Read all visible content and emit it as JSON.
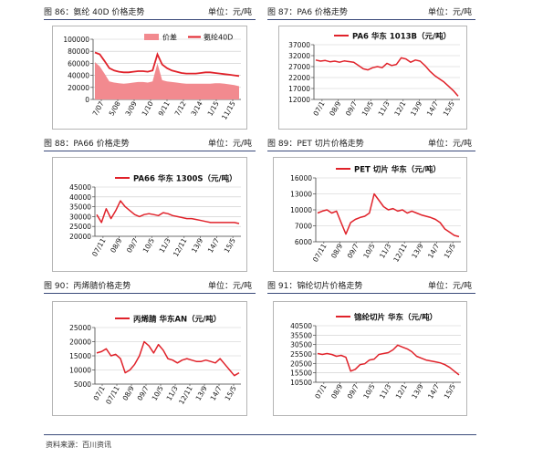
{
  "headers": [
    {
      "title": "图 86：氨纶 40D 价格走势",
      "unit": "单位：元/吨"
    },
    {
      "title": "图 87：PA6 价格走势",
      "unit": "单位：元/吨"
    },
    {
      "title": "图 88：PA66 价格走势",
      "unit": "单位：元/吨"
    },
    {
      "title": "图 89：PET 切片价格走势",
      "unit": "单位：元/吨"
    },
    {
      "title": "图 90：丙烯腈价格走势",
      "unit": "单位：元/吨"
    },
    {
      "title": "图 91：锦纶切片价格走势",
      "unit": "单位：元/吨"
    }
  ],
  "source": "资料来源：百川资讯",
  "line_color": "#e0222a",
  "area_color": "#f28a8f",
  "chart_data": [
    {
      "type": "area+line",
      "ylim": [
        0,
        100000
      ],
      "yticks": [
        "100000",
        "80000",
        "60000",
        "40000",
        "20000",
        "0"
      ],
      "xticks": [
        "7/07",
        "5/08",
        "3/09",
        "1/10",
        "9/11",
        "7/12",
        "3/14",
        "1/15",
        "11/15"
      ],
      "legend": [
        "价差",
        "氨纶40D"
      ],
      "series": [
        {
          "name": "价差",
          "kind": "area",
          "values": [
            62000,
            55000,
            43000,
            30000,
            28000,
            27000,
            26000,
            27000,
            28000,
            29000,
            29000,
            28000,
            30000,
            60000,
            32000,
            30000,
            29000,
            28000,
            27000,
            26000,
            26000,
            26000,
            26000,
            26000,
            26000,
            27000,
            27000,
            26000,
            25000,
            24000,
            22000
          ]
        },
        {
          "name": "氨纶40D",
          "kind": "line",
          "values": [
            78000,
            75000,
            64000,
            52000,
            48000,
            46000,
            45000,
            45000,
            46000,
            47000,
            47000,
            46000,
            48000,
            75000,
            58000,
            52000,
            48000,
            46000,
            44000,
            43000,
            43000,
            43000,
            44000,
            45000,
            45000,
            44000,
            43000,
            42000,
            41000,
            40000,
            39000
          ]
        }
      ]
    },
    {
      "type": "line",
      "title": "PA6 华东 1013B（元/吨）",
      "ylim": [
        12000,
        37000
      ],
      "yticks": [
        "37000",
        "32000",
        "27000",
        "22000",
        "17000",
        "12000"
      ],
      "xticks": [
        "07/1",
        "08/9",
        "09/7",
        "10/5",
        "11/3",
        "12/1",
        "13/9",
        "14/7",
        "15/5"
      ],
      "values": [
        30000,
        29500,
        29800,
        29200,
        29500,
        29000,
        29600,
        29300,
        29000,
        27500,
        26000,
        25500,
        26500,
        27000,
        26500,
        28500,
        27500,
        28000,
        31000,
        30500,
        29000,
        30000,
        29500,
        27500,
        25000,
        23000,
        21500,
        20000,
        18000,
        16000,
        13500
      ]
    },
    {
      "type": "line",
      "title": "PA66 华东 1300S（元/吨）",
      "ylim": [
        20000,
        45000
      ],
      "yticks": [
        "45000",
        "40000",
        "35000",
        "30000",
        "25000",
        "20000"
      ],
      "xticks": [
        "07/11",
        "08/9",
        "09/7",
        "10/5",
        "11/3",
        "12/11",
        "13/9",
        "14/7",
        "15/5"
      ],
      "values": [
        31000,
        27000,
        34000,
        29000,
        33000,
        38000,
        35000,
        33000,
        31000,
        30000,
        31000,
        31500,
        31000,
        30500,
        32000,
        31500,
        30500,
        30000,
        29500,
        29000,
        29000,
        28500,
        28000,
        27500,
        27000,
        27000,
        27000,
        27000,
        27000,
        27000,
        26500
      ]
    },
    {
      "type": "line",
      "title": "PET 切片 华东（元/吨）",
      "ylim": [
        6000,
        16000
      ],
      "yticks": [
        "16000",
        "13000",
        "10000",
        "7000",
        "6000"
      ],
      "xticks": [
        "07/11",
        "08/9",
        "09/7",
        "10/5",
        "11/3",
        "12/11",
        "13/9",
        "14/7",
        "15/5"
      ],
      "values": [
        10500,
        10800,
        11000,
        10500,
        10800,
        9000,
        7200,
        9000,
        9500,
        9800,
        10000,
        10500,
        13500,
        12500,
        11500,
        11000,
        11200,
        10800,
        11000,
        10500,
        10800,
        10500,
        10200,
        10000,
        9800,
        9500,
        9000,
        8000,
        7500,
        7000,
        6800
      ]
    },
    {
      "type": "line",
      "title": "丙烯腈 华东AN（元/吨）",
      "ylim": [
        5000,
        25000
      ],
      "yticks": [
        "25000",
        "20000",
        "15000",
        "10000",
        "5000"
      ],
      "xticks": [
        "07/1",
        "07/11",
        "08/9",
        "09/7",
        "10/5",
        "11/3",
        "12/11",
        "13/9",
        "14/7",
        "15/5"
      ],
      "values": [
        16000,
        16500,
        17500,
        15000,
        15500,
        14000,
        9000,
        10000,
        12000,
        15000,
        20000,
        18500,
        16000,
        19000,
        17000,
        14000,
        13500,
        12500,
        13500,
        14000,
        13500,
        13000,
        13000,
        13500,
        13000,
        12500,
        14000,
        12000,
        10000,
        8000,
        9000
      ]
    },
    {
      "type": "line",
      "title": "锦纶切片 华东（元/吨）",
      "ylim": [
        10000,
        40500
      ],
      "yticks": [
        "40500",
        "35500",
        "30500",
        "25500",
        "20500",
        "15500",
        "10500"
      ],
      "xticks": [
        "07/1",
        "08/9",
        "09/7",
        "10/5",
        "11/3",
        "12/1",
        "13/9",
        "14/7",
        "15/5"
      ],
      "values": [
        25500,
        25000,
        25500,
        25000,
        24000,
        24500,
        23500,
        16000,
        17000,
        19500,
        20000,
        22000,
        22500,
        25000,
        25500,
        26000,
        27500,
        30000,
        29000,
        28000,
        26500,
        24000,
        23000,
        22000,
        21500,
        21000,
        20500,
        19500,
        18000,
        16000,
        14000
      ]
    }
  ]
}
